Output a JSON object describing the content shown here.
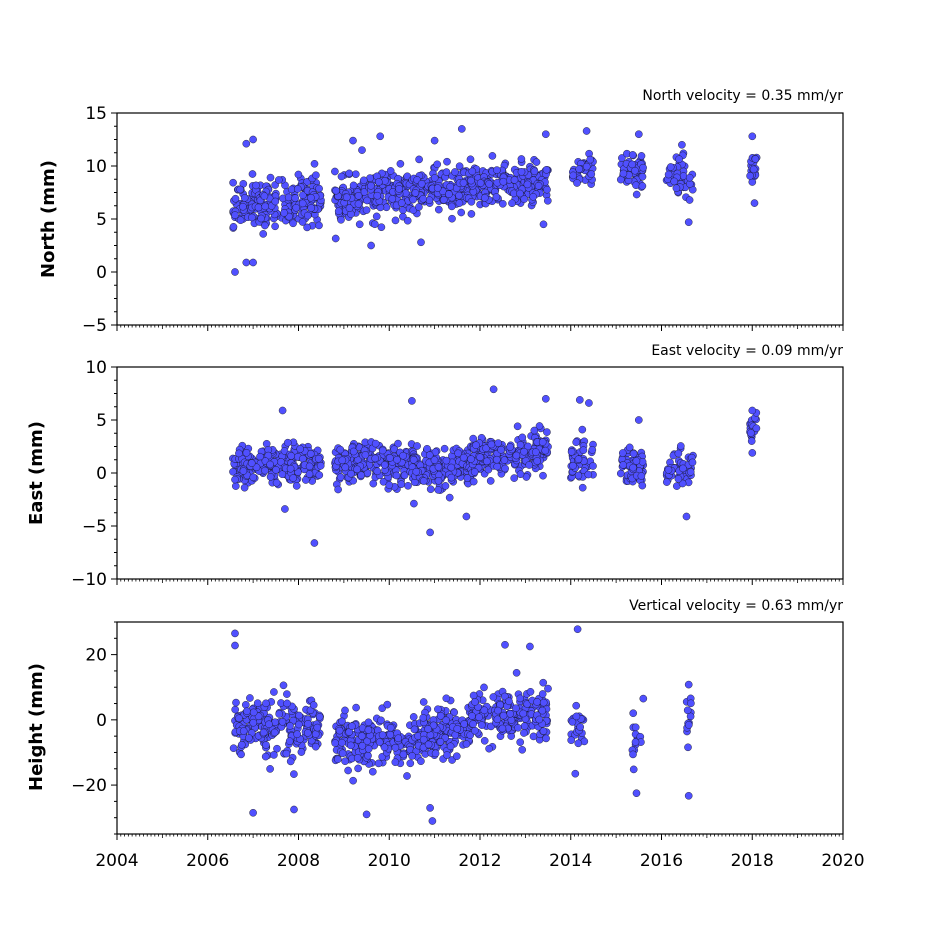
{
  "colors": {
    "marker_fill": "#5050ff",
    "marker_edge": "#111111",
    "axes": "#000000",
    "background": "#ffffff"
  },
  "chart_data": [
    {
      "type": "scatter",
      "title": "North velocity = 0.35 mm/yr",
      "xlabel": "",
      "ylabel": "North (mm)",
      "xlim": [
        2004,
        2020
      ],
      "ylim": [
        -5,
        15
      ],
      "yticks": [
        -5,
        0,
        5,
        10,
        15
      ],
      "xticks": [
        2004,
        2006,
        2008,
        2010,
        2012,
        2014,
        2016,
        2018,
        2020
      ],
      "show_xtick_labels": false,
      "grid": false,
      "segments": [
        {
          "x": [
            2006.55,
            2008.5
          ],
          "mean": [
            6.0,
            7.0
          ],
          "spread": 1.9,
          "n": 230
        },
        {
          "x": [
            2008.8,
            2010.5
          ],
          "mean": [
            6.7,
            7.5
          ],
          "spread": 1.7,
          "n": 210
        },
        {
          "x": [
            2010.5,
            2012.0
          ],
          "mean": [
            7.4,
            8.3
          ],
          "spread": 1.7,
          "n": 190
        },
        {
          "x": [
            2012.0,
            2013.5
          ],
          "mean": [
            8.0,
            8.6
          ],
          "spread": 1.5,
          "n": 190
        },
        {
          "x": [
            2014.0,
            2014.5
          ],
          "mean": [
            9.4,
            9.8
          ],
          "spread": 1.4,
          "n": 40
        },
        {
          "x": [
            2015.1,
            2015.6
          ],
          "mean": [
            9.5,
            9.8
          ],
          "spread": 1.4,
          "n": 60
        },
        {
          "x": [
            2016.1,
            2016.7
          ],
          "mean": [
            8.8,
            9.2
          ],
          "spread": 1.5,
          "n": 50
        },
        {
          "x": [
            2017.95,
            2018.1
          ],
          "mean": [
            9.8,
            10.0
          ],
          "spread": 1.2,
          "n": 20
        }
      ],
      "outliers": [
        {
          "x": 2006.6,
          "y": 0.0
        },
        {
          "x": 2006.85,
          "y": 0.9
        },
        {
          "x": 2007.0,
          "y": 0.9
        },
        {
          "x": 2006.85,
          "y": 12.1
        },
        {
          "x": 2007.0,
          "y": 12.5
        },
        {
          "x": 2009.2,
          "y": 12.4
        },
        {
          "x": 2009.4,
          "y": 11.5
        },
        {
          "x": 2009.8,
          "y": 12.8
        },
        {
          "x": 2011.0,
          "y": 12.4
        },
        {
          "x": 2011.6,
          "y": 13.5
        },
        {
          "x": 2013.45,
          "y": 13.0
        },
        {
          "x": 2014.35,
          "y": 13.3
        },
        {
          "x": 2015.5,
          "y": 13.0
        },
        {
          "x": 2016.45,
          "y": 12.0
        },
        {
          "x": 2018.0,
          "y": 12.8
        },
        {
          "x": 2018.05,
          "y": 6.5
        },
        {
          "x": 2016.6,
          "y": 4.7
        },
        {
          "x": 2009.6,
          "y": 2.5
        },
        {
          "x": 2010.7,
          "y": 2.8
        },
        {
          "x": 2013.4,
          "y": 4.5
        }
      ]
    },
    {
      "type": "scatter",
      "title": "East velocity = 0.09 mm/yr",
      "xlabel": "",
      "ylabel": "East (mm)",
      "xlim": [
        2004,
        2020
      ],
      "ylim": [
        -10,
        10
      ],
      "yticks": [
        -10,
        -5,
        0,
        5,
        10
      ],
      "xticks": [
        2004,
        2006,
        2008,
        2010,
        2012,
        2014,
        2016,
        2018,
        2020
      ],
      "show_xtick_labels": false,
      "grid": false,
      "segments": [
        {
          "x": [
            2006.55,
            2008.5
          ],
          "mean": [
            0.5,
            0.8
          ],
          "spread": 1.6,
          "n": 230
        },
        {
          "x": [
            2008.8,
            2010.5
          ],
          "mean": [
            1.0,
            0.8
          ],
          "spread": 1.5,
          "n": 210
        },
        {
          "x": [
            2010.5,
            2011.8
          ],
          "mean": [
            0.3,
            0.6
          ],
          "spread": 1.6,
          "n": 170
        },
        {
          "x": [
            2011.8,
            2013.5
          ],
          "mean": [
            1.5,
            2.0
          ],
          "spread": 1.6,
          "n": 210
        },
        {
          "x": [
            2014.0,
            2014.5
          ],
          "mean": [
            1.0,
            1.2
          ],
          "spread": 2.0,
          "n": 50
        },
        {
          "x": [
            2015.1,
            2015.6
          ],
          "mean": [
            0.6,
            0.4
          ],
          "spread": 1.5,
          "n": 70
        },
        {
          "x": [
            2016.1,
            2016.7
          ],
          "mean": [
            0.2,
            0.5
          ],
          "spread": 1.5,
          "n": 60
        },
        {
          "x": [
            2017.95,
            2018.1
          ],
          "mean": [
            3.8,
            4.2
          ],
          "spread": 1.0,
          "n": 20
        }
      ],
      "outliers": [
        {
          "x": 2008.35,
          "y": -6.6
        },
        {
          "x": 2010.9,
          "y": -5.6
        },
        {
          "x": 2011.7,
          "y": -4.1
        },
        {
          "x": 2007.7,
          "y": -3.4
        },
        {
          "x": 2007.65,
          "y": 5.9
        },
        {
          "x": 2010.5,
          "y": 6.8
        },
        {
          "x": 2012.3,
          "y": 7.9
        },
        {
          "x": 2014.2,
          "y": 6.9
        },
        {
          "x": 2014.4,
          "y": 6.6
        },
        {
          "x": 2018.0,
          "y": 5.9
        },
        {
          "x": 2018.0,
          "y": 1.9
        },
        {
          "x": 2016.55,
          "y": -4.1
        },
        {
          "x": 2015.5,
          "y": 5.0
        },
        {
          "x": 2013.45,
          "y": 7.0
        }
      ]
    },
    {
      "type": "scatter",
      "title": "Vertical velocity = 0.63 mm/yr",
      "xlabel": "",
      "ylabel": "Height (mm)",
      "xlim": [
        2004,
        2020
      ],
      "ylim": [
        -35,
        30
      ],
      "yticks": [
        -20,
        0,
        20
      ],
      "xticks": [
        2004,
        2006,
        2008,
        2010,
        2012,
        2014,
        2016,
        2018,
        2020
      ],
      "xtick_labels": [
        "2004",
        "2006",
        "2008",
        "2010",
        "2012",
        "2014",
        "2016",
        "2018",
        "2020"
      ],
      "show_xtick_labels": true,
      "grid": false,
      "segments": [
        {
          "x": [
            2006.55,
            2008.5
          ],
          "mean": [
            -2.0,
            -3.0
          ],
          "spread": 7.0,
          "n": 230
        },
        {
          "x": [
            2008.8,
            2010.5
          ],
          "mean": [
            -5.0,
            -7.0
          ],
          "spread": 6.5,
          "n": 210
        },
        {
          "x": [
            2010.5,
            2011.8
          ],
          "mean": [
            -6.0,
            -2.0
          ],
          "spread": 6.5,
          "n": 170
        },
        {
          "x": [
            2011.8,
            2013.5
          ],
          "mean": [
            1.0,
            2.0
          ],
          "spread": 6.0,
          "n": 200
        },
        {
          "x": [
            2014.0,
            2014.3
          ],
          "mean": [
            -3.0,
            -4.0
          ],
          "spread": 6.5,
          "n": 25
        },
        {
          "x": [
            2015.35,
            2015.55
          ],
          "mean": [
            -5.0,
            -3.0
          ],
          "spread": 7.0,
          "n": 14
        },
        {
          "x": [
            2016.55,
            2016.65
          ],
          "mean": [
            -2.0,
            2.0
          ],
          "spread": 8.0,
          "n": 12
        }
      ],
      "outliers": [
        {
          "x": 2006.6,
          "y": 26.5
        },
        {
          "x": 2006.6,
          "y": 22.8
        },
        {
          "x": 2014.15,
          "y": 27.8
        },
        {
          "x": 2012.55,
          "y": 23.0
        },
        {
          "x": 2013.1,
          "y": 22.5
        },
        {
          "x": 2010.9,
          "y": -27.0
        },
        {
          "x": 2010.95,
          "y": -31.0
        },
        {
          "x": 2009.5,
          "y": -29.0
        },
        {
          "x": 2007.0,
          "y": -28.5
        },
        {
          "x": 2007.9,
          "y": -27.5
        },
        {
          "x": 2015.45,
          "y": -22.5
        },
        {
          "x": 2016.6,
          "y": -23.3
        },
        {
          "x": 2016.6,
          "y": 10.8
        },
        {
          "x": 2015.6,
          "y": 6.5
        },
        {
          "x": 2014.1,
          "y": -16.5
        }
      ]
    }
  ]
}
